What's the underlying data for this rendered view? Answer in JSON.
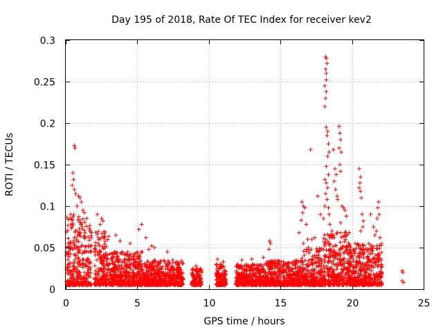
{
  "chart_data": {
    "type": "scatter",
    "title": "Day 195 of 2018, Rate Of TEC Index for receiver kev2",
    "xlabel": "GPS time / hours",
    "ylabel": "ROTI / TECUs",
    "xlim": [
      0,
      25
    ],
    "ylim": [
      0,
      0.3
    ],
    "xticks": [
      0,
      5,
      10,
      15,
      20,
      25
    ],
    "yticks": [
      0,
      0.05,
      0.1,
      0.15,
      0.2,
      0.25,
      0.3
    ],
    "xtick_labels": [
      "0",
      "5",
      "10",
      "15",
      "20",
      "25"
    ],
    "ytick_labels": [
      "0",
      "0.05",
      "0.1",
      "0.15",
      "0.2",
      "0.25",
      "0.3"
    ],
    "grid": true,
    "marker": "+",
    "color": "#ff0000",
    "segments": [
      {
        "x_start": 0.05,
        "x_end": 1.8,
        "y_min": 0.005,
        "y_max": 0.09
      },
      {
        "x_start": 2.0,
        "x_end": 3.0,
        "y_min": 0.005,
        "y_max": 0.07
      },
      {
        "x_start": 3.0,
        "x_end": 5.5,
        "y_min": 0.005,
        "y_max": 0.045
      },
      {
        "x_start": 5.5,
        "x_end": 8.2,
        "y_min": 0.005,
        "y_max": 0.035
      },
      {
        "x_start": 8.8,
        "x_end": 9.5,
        "y_min": 0.005,
        "y_max": 0.025
      },
      {
        "x_start": 10.5,
        "x_end": 11.2,
        "y_min": 0.005,
        "y_max": 0.03
      },
      {
        "x_start": 11.9,
        "x_end": 14.0,
        "y_min": 0.005,
        "y_max": 0.03
      },
      {
        "x_start": 14.0,
        "x_end": 16.5,
        "y_min": 0.005,
        "y_max": 0.035
      },
      {
        "x_start": 16.5,
        "x_end": 18.0,
        "y_min": 0.005,
        "y_max": 0.05
      },
      {
        "x_start": 18.0,
        "x_end": 19.8,
        "y_min": 0.005,
        "y_max": 0.07
      },
      {
        "x_start": 19.8,
        "x_end": 22.1,
        "y_min": 0.005,
        "y_max": 0.055
      }
    ],
    "points": [
      [
        0.6,
        0.173
      ],
      [
        0.65,
        0.17
      ],
      [
        0.5,
        0.14
      ],
      [
        0.55,
        0.132
      ],
      [
        0.45,
        0.125
      ],
      [
        0.6,
        0.12
      ],
      [
        0.7,
        0.115
      ],
      [
        0.9,
        0.112
      ],
      [
        1.0,
        0.11
      ],
      [
        1.1,
        0.105
      ],
      [
        0.8,
        0.1
      ],
      [
        0.35,
        0.09
      ],
      [
        0.3,
        0.085
      ],
      [
        1.2,
        0.095
      ],
      [
        1.3,
        0.092
      ],
      [
        2.2,
        0.09
      ],
      [
        2.5,
        0.085
      ],
      [
        2.4,
        0.078
      ],
      [
        2.6,
        0.082
      ],
      [
        3.5,
        0.065
      ],
      [
        3.8,
        0.058
      ],
      [
        4.5,
        0.055
      ],
      [
        5.3,
        0.078
      ],
      [
        5.1,
        0.072
      ],
      [
        5.6,
        0.062
      ],
      [
        6.0,
        0.052
      ],
      [
        6.2,
        0.05
      ],
      [
        5.8,
        0.048
      ],
      [
        7.1,
        0.045
      ],
      [
        9.1,
        0.028
      ],
      [
        10.6,
        0.036
      ],
      [
        11.0,
        0.033
      ],
      [
        12.3,
        0.035
      ],
      [
        13.0,
        0.036
      ],
      [
        13.8,
        0.038
      ],
      [
        14.2,
        0.048
      ],
      [
        14.3,
        0.055
      ],
      [
        14.25,
        0.058
      ],
      [
        16.5,
        0.105
      ],
      [
        16.6,
        0.1
      ],
      [
        16.7,
        0.098
      ],
      [
        16.55,
        0.092
      ],
      [
        16.45,
        0.083
      ],
      [
        16.8,
        0.078
      ],
      [
        16.3,
        0.068
      ],
      [
        16.9,
        0.06
      ],
      [
        16.6,
        0.055
      ],
      [
        17.2,
        0.06
      ],
      [
        17.4,
        0.062
      ],
      [
        17.1,
        0.168
      ],
      [
        17.6,
        0.112
      ],
      [
        17.8,
        0.09
      ],
      [
        18.15,
        0.28
      ],
      [
        18.2,
        0.278
      ],
      [
        18.25,
        0.272
      ],
      [
        18.15,
        0.265
      ],
      [
        18.2,
        0.26
      ],
      [
        18.2,
        0.252
      ],
      [
        18.1,
        0.245
      ],
      [
        18.2,
        0.238
      ],
      [
        18.15,
        0.23
      ],
      [
        18.1,
        0.22
      ],
      [
        18.2,
        0.195
      ],
      [
        18.3,
        0.19
      ],
      [
        18.25,
        0.185
      ],
      [
        18.35,
        0.175
      ],
      [
        18.4,
        0.165
      ],
      [
        18.3,
        0.16
      ],
      [
        18.2,
        0.148
      ],
      [
        18.35,
        0.138
      ],
      [
        18.1,
        0.132
      ],
      [
        18.2,
        0.128
      ],
      [
        18.3,
        0.122
      ],
      [
        18.15,
        0.115
      ],
      [
        18.25,
        0.108
      ],
      [
        18.1,
        0.1
      ],
      [
        18.35,
        0.098
      ],
      [
        18.4,
        0.09
      ],
      [
        18.0,
        0.085
      ],
      [
        18.45,
        0.078
      ],
      [
        18.6,
        0.07
      ],
      [
        18.7,
        0.168
      ],
      [
        18.8,
        0.145
      ],
      [
        18.9,
        0.138
      ],
      [
        18.75,
        0.13
      ],
      [
        18.85,
        0.12
      ],
      [
        18.95,
        0.112
      ],
      [
        19.0,
        0.108
      ],
      [
        19.1,
        0.196
      ],
      [
        19.15,
        0.188
      ],
      [
        19.2,
        0.18
      ],
      [
        19.1,
        0.17
      ],
      [
        19.25,
        0.165
      ],
      [
        19.15,
        0.15
      ],
      [
        19.2,
        0.142
      ],
      [
        19.3,
        0.1
      ],
      [
        19.4,
        0.098
      ],
      [
        19.5,
        0.095
      ],
      [
        19.6,
        0.088
      ],
      [
        19.2,
        0.08
      ],
      [
        20.5,
        0.145
      ],
      [
        20.6,
        0.135
      ],
      [
        20.55,
        0.128
      ],
      [
        20.5,
        0.122
      ],
      [
        20.6,
        0.118
      ],
      [
        20.65,
        0.11
      ],
      [
        20.7,
        0.09
      ],
      [
        20.8,
        0.082
      ],
      [
        20.75,
        0.075
      ],
      [
        20.6,
        0.07
      ],
      [
        21.3,
        0.09
      ],
      [
        21.5,
        0.075
      ],
      [
        21.7,
        0.07
      ],
      [
        21.8,
        0.098
      ],
      [
        21.85,
        0.105
      ],
      [
        21.9,
        0.09
      ],
      [
        21.75,
        0.085
      ],
      [
        21.6,
        0.065
      ],
      [
        21.95,
        0.062
      ],
      [
        23.5,
        0.022
      ],
      [
        23.55,
        0.02
      ],
      [
        23.5,
        0.01
      ],
      [
        23.6,
        0.008
      ]
    ]
  }
}
